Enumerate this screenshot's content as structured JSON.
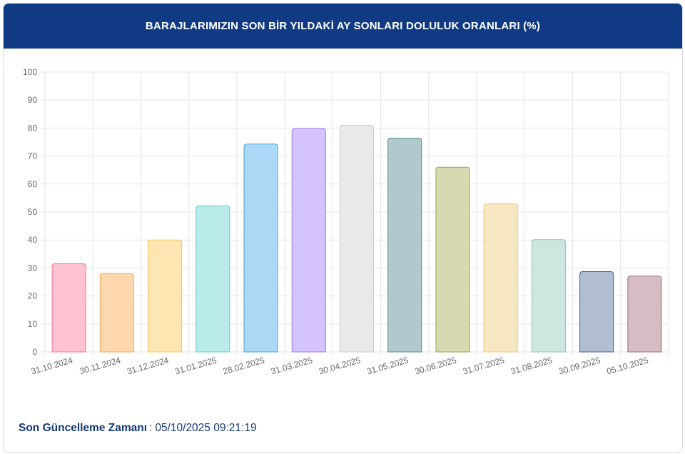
{
  "header": {
    "title": "BARAJLARIMIZIN SON BİR YILDAKİ AY SONLARI DOLULUK ORANLARI (%)"
  },
  "footer": {
    "label": "Son Güncelleme Zamanı",
    "separator": ":",
    "value": "05/10/2025 09:21:19"
  },
  "chart_data": {
    "type": "bar",
    "title": "BARAJLARIMIZIN SON BİR YILDAKİ AY SONLARI DOLULUK ORANLARI (%)",
    "categories": [
      "31.10.2024",
      "30.11.2024",
      "31.12.2024",
      "31.01.2025",
      "28.02.2025",
      "31.03.2025",
      "30.04.2025",
      "31.05.2025",
      "30.06.2025",
      "31.07.2025",
      "31.08.2025",
      "30.09.2025",
      "05.10.2025"
    ],
    "values": [
      31.5,
      28,
      40,
      52.2,
      74.3,
      79.8,
      81,
      76.4,
      66,
      52.9,
      40.1,
      28.7,
      27.1
    ],
    "ylim": [
      0,
      100
    ],
    "yticks": [
      "0",
      "10",
      "20",
      "30",
      "40",
      "50",
      "60",
      "70",
      "80",
      "90",
      "100"
    ],
    "grid": true,
    "legend": "none",
    "bar_fills": [
      "#ffc2d0",
      "#ffd7ad",
      "#fee6b2",
      "#b8ebe9",
      "#acd8f6",
      "#d5c3ff",
      "#e9e9ea",
      "#b0c9cc",
      "#d7dab0",
      "#f8e7c3",
      "#cbe7e0",
      "#b0bdd3",
      "#d6bcc3"
    ],
    "bar_strokes": [
      "#f4758f",
      "#f5a654",
      "#f4c659",
      "#5fcdc8",
      "#45a6e6",
      "#9d77f3",
      "#c9c9cb",
      "#5d8a8b",
      "#97a25a",
      "#ecc56d",
      "#89c4b4",
      "#4a5e87",
      "#9d6e7b"
    ]
  }
}
